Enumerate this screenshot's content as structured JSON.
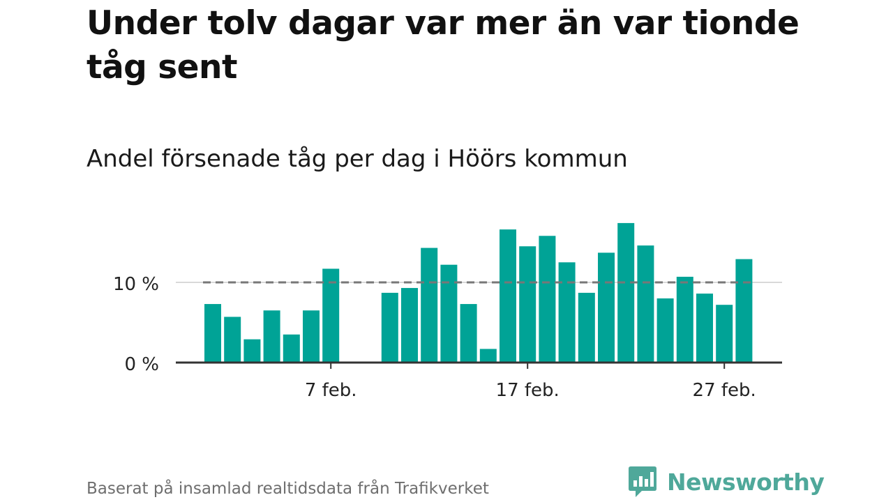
{
  "header": {
    "title": "Under tolv dagar var mer än var tionde tåg sent",
    "subtitle": "Andel försenade tåg per dag i Höörs kommun"
  },
  "footer": {
    "source": "Baserat på insamlad realtidsdata från Trafikverket",
    "brand": "Newsworthy",
    "brand_icon": "newsworthy-logo-icon"
  },
  "colors": {
    "bar": "#00a396",
    "reference_line": "#777777",
    "axis": "#333333",
    "gridline": "#d9d9d9",
    "brand": "#4fa89a"
  },
  "chart_data": {
    "type": "bar",
    "title": "Andel försenade tåg per dag i Höörs kommun",
    "xlabel": "",
    "ylabel": "",
    "x_unit": "day of February",
    "x": [
      1,
      2,
      3,
      4,
      5,
      6,
      7,
      8,
      9,
      10,
      11,
      12,
      13,
      14,
      15,
      16,
      17,
      18,
      19,
      20,
      21,
      22,
      23,
      24,
      25,
      26,
      27,
      28
    ],
    "values": [
      7.3,
      5.7,
      2.9,
      6.5,
      3.5,
      6.5,
      11.7,
      null,
      null,
      8.7,
      9.3,
      14.3,
      12.2,
      7.3,
      1.7,
      16.6,
      14.5,
      15.8,
      12.5,
      8.7,
      13.7,
      17.4,
      14.6,
      8.0,
      10.7,
      8.6,
      7.2,
      12.9
    ],
    "ylim": [
      0,
      18.5
    ],
    "y_ticks": [
      {
        "value": 0,
        "label": "0 %"
      },
      {
        "value": 10,
        "label": "10 %"
      }
    ],
    "x_ticks": [
      {
        "x": 7,
        "label": "7 feb."
      },
      {
        "x": 17,
        "label": "17 feb."
      },
      {
        "x": 27,
        "label": "27 feb."
      }
    ],
    "reference_line": {
      "value": 10,
      "style": "dashed"
    },
    "grid": "horizontal at 10 %",
    "legend": "none"
  }
}
